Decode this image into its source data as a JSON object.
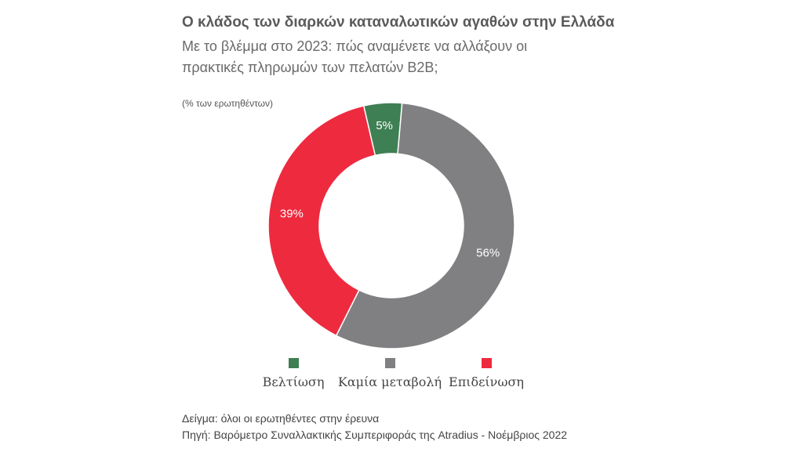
{
  "title": "Ο κλάδος των διαρκών καταναλωτικών αγαθών στην Ελλάδα",
  "subtitle": "Με το βλέμμα στο 2023: πώς αναμένετε να αλλάξουν οι πρακτικές πληρωμών των πελατών B2B;",
  "unit_note": "(% των ερωτηθέντων)",
  "footer": {
    "sample": "Δείγμα: όλοι οι ερωτηθέντες στην έρευνα",
    "source": "Πηγή: Βαρόμετρο Συναλλακτικής Συμπεριφοράς της Atradius - Νοέμβριος 2022"
  },
  "chart_data": {
    "type": "pie",
    "variant": "donut",
    "start_angle_deg": -13,
    "categories": [
      "Βελτίωση",
      "Καμία μεταβολή",
      "Επιδείνωση"
    ],
    "values": [
      5,
      56,
      39
    ],
    "labels": [
      "5%",
      "56%",
      "39%"
    ],
    "colors": [
      "#3f7f54",
      "#808083",
      "#ee2a3f"
    ],
    "legend_position": "bottom"
  }
}
